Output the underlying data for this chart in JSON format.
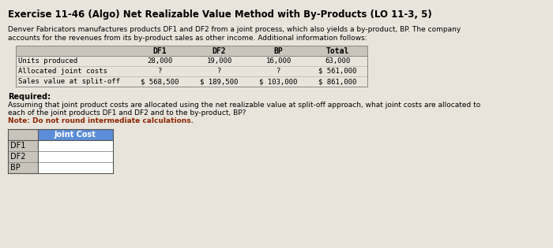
{
  "title": "Exercise 11-46 (Algo) Net Realizable Value Method with By-Products (LO 11-3, 5)",
  "description_line1": "Denver Fabricators manufactures products DF1 and DF2 from a joint process, which also yields a by-product, BP. The company",
  "description_line2": "accounts for the revenues from its by-product sales as other income. Additional information follows:",
  "table_headers": [
    "",
    "DF1",
    "DF2",
    "BP",
    "Total"
  ],
  "table_rows": [
    [
      "Units produced",
      "28,000",
      "19,000",
      "16,000",
      "63,000"
    ],
    [
      "Allocated joint costs",
      "?",
      "?",
      "?",
      "$ 561,000"
    ],
    [
      "Sales value at split-off",
      "$ 568,500",
      "$ 189,500",
      "$ 103,000",
      "$ 861,000"
    ]
  ],
  "required_label": "Required:",
  "required_text1": "Assuming that joint product costs are allocated using the net realizable value at split-off approach, what joint costs are allocated to",
  "required_text2": "each of the joint products DF1 and DF2 and to the by-product, BP?",
  "required_note": "Note: Do not round intermediate calculations.",
  "answer_rows": [
    "DF1",
    "DF2",
    "BP"
  ],
  "answer_header": "Joint Cost",
  "bg_color": "#e8e4dc",
  "table_header_bg": "#c8c4bc",
  "table_row_bg": "#e8e4dc",
  "ans_header_bg": "#5b8dd9",
  "ans_header_fg": "#ffffff",
  "ans_label_bg": "#c8c4bc",
  "ans_value_bg": "#ffffff",
  "note_color": "#8b2500"
}
